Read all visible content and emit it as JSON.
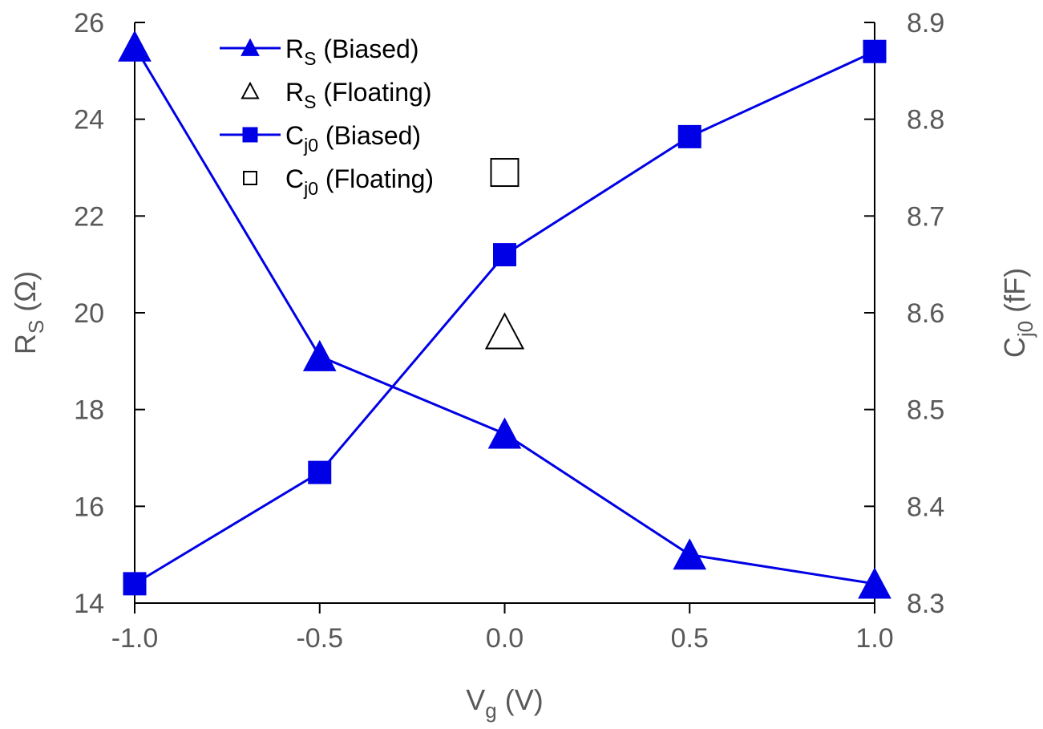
{
  "chart_data": {
    "type": "line",
    "xlabel": "V",
    "xlabel_sub": "g",
    "xlabel_unit": " (V)",
    "ylabel_left": "R",
    "ylabel_left_sub": "S",
    "ylabel_left_unit": " (Ω)",
    "ylabel_right": "C",
    "ylabel_right_sub": "j0",
    "ylabel_right_unit": " (fF)",
    "xlim": [
      -1.0,
      1.0
    ],
    "ylim_left": [
      14,
      26
    ],
    "ylim_right": [
      8.3,
      8.9
    ],
    "x_ticks": [
      "-1.0",
      "-0.5",
      "0.0",
      "0.5",
      "1.0"
    ],
    "y_left_ticks": [
      "14",
      "16",
      "18",
      "20",
      "22",
      "24",
      "26"
    ],
    "y_right_ticks": [
      "8.3",
      "8.4",
      "8.5",
      "8.6",
      "8.7",
      "8.8",
      "8.9"
    ],
    "grid": false,
    "legend_position": "top-left",
    "colors": {
      "biased": "#0000e6",
      "floating": "#000000",
      "axis": "#000000",
      "text": "#595959"
    },
    "series": [
      {
        "name": "R",
        "name_sub": "S",
        "name_suffix": " (Biased)",
        "axis": "left",
        "marker": "triangle",
        "filled": true,
        "line": true,
        "x": [
          -1.0,
          -0.5,
          0.0,
          0.5,
          1.0
        ],
        "values": [
          25.5,
          19.1,
          17.5,
          15.0,
          14.4
        ]
      },
      {
        "name": "R",
        "name_sub": "S",
        "name_suffix": " (Floating)",
        "axis": "left",
        "marker": "triangle",
        "filled": false,
        "line": false,
        "x": [
          0.0
        ],
        "values": [
          19.6
        ]
      },
      {
        "name": "C",
        "name_sub": "j0",
        "name_suffix": " (Biased)",
        "axis": "right",
        "marker": "square",
        "filled": true,
        "line": true,
        "x": [
          -1.0,
          -0.5,
          0.0,
          0.5,
          1.0
        ],
        "values": [
          8.32,
          8.435,
          8.66,
          8.782,
          8.87
        ]
      },
      {
        "name": "C",
        "name_sub": "j0",
        "name_suffix": " (Floating)",
        "axis": "right",
        "marker": "square",
        "filled": false,
        "line": false,
        "x": [
          0.0
        ],
        "values": [
          8.745
        ]
      }
    ]
  }
}
